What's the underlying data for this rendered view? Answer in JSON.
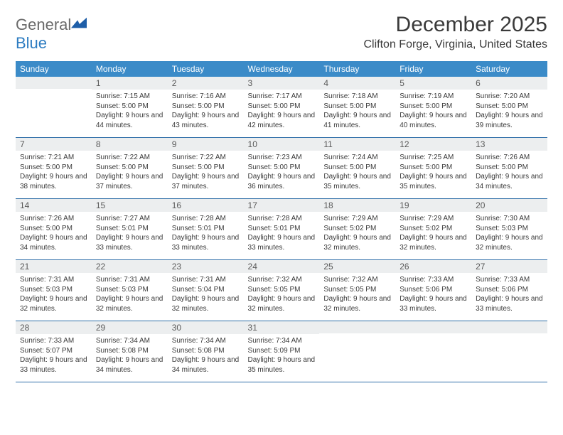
{
  "brand": {
    "general": "General",
    "blue": "Blue",
    "mark_color": "#1e5ea8"
  },
  "title": "December 2025",
  "location": "Clifton Forge, Virginia, United States",
  "colors": {
    "header_bg": "#3b8bc8",
    "header_text": "#ffffff",
    "daynum_bg": "#eceeef",
    "row_border": "#2f6ea8",
    "text": "#3a3a3a"
  },
  "weekdays": [
    "Sunday",
    "Monday",
    "Tuesday",
    "Wednesday",
    "Thursday",
    "Friday",
    "Saturday"
  ],
  "weeks": [
    [
      null,
      {
        "n": "1",
        "sr": "7:15 AM",
        "ss": "5:00 PM",
        "dl": "9 hours and 44 minutes."
      },
      {
        "n": "2",
        "sr": "7:16 AM",
        "ss": "5:00 PM",
        "dl": "9 hours and 43 minutes."
      },
      {
        "n": "3",
        "sr": "7:17 AM",
        "ss": "5:00 PM",
        "dl": "9 hours and 42 minutes."
      },
      {
        "n": "4",
        "sr": "7:18 AM",
        "ss": "5:00 PM",
        "dl": "9 hours and 41 minutes."
      },
      {
        "n": "5",
        "sr": "7:19 AM",
        "ss": "5:00 PM",
        "dl": "9 hours and 40 minutes."
      },
      {
        "n": "6",
        "sr": "7:20 AM",
        "ss": "5:00 PM",
        "dl": "9 hours and 39 minutes."
      }
    ],
    [
      {
        "n": "7",
        "sr": "7:21 AM",
        "ss": "5:00 PM",
        "dl": "9 hours and 38 minutes."
      },
      {
        "n": "8",
        "sr": "7:22 AM",
        "ss": "5:00 PM",
        "dl": "9 hours and 37 minutes."
      },
      {
        "n": "9",
        "sr": "7:22 AM",
        "ss": "5:00 PM",
        "dl": "9 hours and 37 minutes."
      },
      {
        "n": "10",
        "sr": "7:23 AM",
        "ss": "5:00 PM",
        "dl": "9 hours and 36 minutes."
      },
      {
        "n": "11",
        "sr": "7:24 AM",
        "ss": "5:00 PM",
        "dl": "9 hours and 35 minutes."
      },
      {
        "n": "12",
        "sr": "7:25 AM",
        "ss": "5:00 PM",
        "dl": "9 hours and 35 minutes."
      },
      {
        "n": "13",
        "sr": "7:26 AM",
        "ss": "5:00 PM",
        "dl": "9 hours and 34 minutes."
      }
    ],
    [
      {
        "n": "14",
        "sr": "7:26 AM",
        "ss": "5:00 PM",
        "dl": "9 hours and 34 minutes."
      },
      {
        "n": "15",
        "sr": "7:27 AM",
        "ss": "5:01 PM",
        "dl": "9 hours and 33 minutes."
      },
      {
        "n": "16",
        "sr": "7:28 AM",
        "ss": "5:01 PM",
        "dl": "9 hours and 33 minutes."
      },
      {
        "n": "17",
        "sr": "7:28 AM",
        "ss": "5:01 PM",
        "dl": "9 hours and 33 minutes."
      },
      {
        "n": "18",
        "sr": "7:29 AM",
        "ss": "5:02 PM",
        "dl": "9 hours and 32 minutes."
      },
      {
        "n": "19",
        "sr": "7:29 AM",
        "ss": "5:02 PM",
        "dl": "9 hours and 32 minutes."
      },
      {
        "n": "20",
        "sr": "7:30 AM",
        "ss": "5:03 PM",
        "dl": "9 hours and 32 minutes."
      }
    ],
    [
      {
        "n": "21",
        "sr": "7:31 AM",
        "ss": "5:03 PM",
        "dl": "9 hours and 32 minutes."
      },
      {
        "n": "22",
        "sr": "7:31 AM",
        "ss": "5:03 PM",
        "dl": "9 hours and 32 minutes."
      },
      {
        "n": "23",
        "sr": "7:31 AM",
        "ss": "5:04 PM",
        "dl": "9 hours and 32 minutes."
      },
      {
        "n": "24",
        "sr": "7:32 AM",
        "ss": "5:05 PM",
        "dl": "9 hours and 32 minutes."
      },
      {
        "n": "25",
        "sr": "7:32 AM",
        "ss": "5:05 PM",
        "dl": "9 hours and 32 minutes."
      },
      {
        "n": "26",
        "sr": "7:33 AM",
        "ss": "5:06 PM",
        "dl": "9 hours and 33 minutes."
      },
      {
        "n": "27",
        "sr": "7:33 AM",
        "ss": "5:06 PM",
        "dl": "9 hours and 33 minutes."
      }
    ],
    [
      {
        "n": "28",
        "sr": "7:33 AM",
        "ss": "5:07 PM",
        "dl": "9 hours and 33 minutes."
      },
      {
        "n": "29",
        "sr": "7:34 AM",
        "ss": "5:08 PM",
        "dl": "9 hours and 34 minutes."
      },
      {
        "n": "30",
        "sr": "7:34 AM",
        "ss": "5:08 PM",
        "dl": "9 hours and 34 minutes."
      },
      {
        "n": "31",
        "sr": "7:34 AM",
        "ss": "5:09 PM",
        "dl": "9 hours and 35 minutes."
      },
      null,
      null,
      null
    ]
  ],
  "labels": {
    "sunrise": "Sunrise:",
    "sunset": "Sunset:",
    "daylight": "Daylight:"
  }
}
